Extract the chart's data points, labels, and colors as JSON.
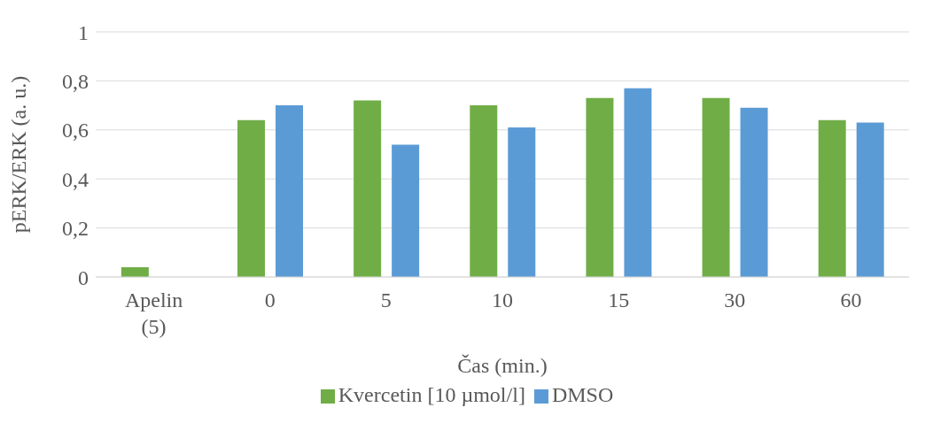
{
  "chart_data": {
    "type": "bar",
    "xlabel": "Čas (min.)",
    "ylabel": "pERK/ERK (a. u.)",
    "categories": [
      "Apelin (5)",
      "0",
      "5",
      "10",
      "15",
      "30",
      "60"
    ],
    "series": [
      {
        "name": "Kvercetin [10 µmol/l]",
        "color": "#70ad47",
        "values": [
          0.04,
          0.64,
          0.72,
          0.7,
          0.73,
          0.73,
          0.64
        ]
      },
      {
        "name": "DMSO",
        "color": "#5b9bd5",
        "values": [
          null,
          0.7,
          0.54,
          0.61,
          0.77,
          0.69,
          0.63
        ]
      }
    ],
    "ylim": [
      0,
      1
    ],
    "yticks": [
      0,
      {
        "value": 0.2,
        "label": "0,2"
      },
      {
        "value": 0.4,
        "label": "0,4"
      },
      {
        "value": 0.6,
        "label": "0,6"
      },
      {
        "value": 0.8,
        "label": "0,8"
      },
      1
    ],
    "grid": "y",
    "legend": "bottom"
  }
}
